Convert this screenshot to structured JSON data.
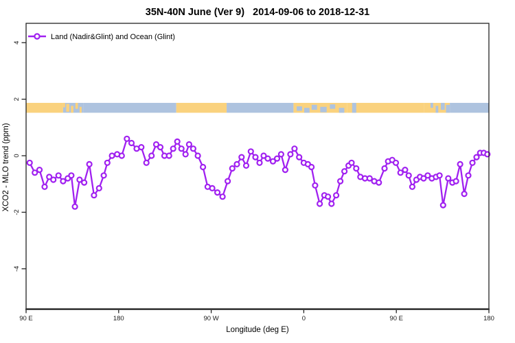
{
  "title": "35N-40N June (Ver 9)   2014-09-06 to 2018-12-31",
  "legend": {
    "label": "Land (Nadir&Glint) and Ocean (Glint)",
    "marker_color": "#A020F0"
  },
  "colors": {
    "series_purple": "#A020F0",
    "marker_fill": "#ffffff",
    "axis": "#222222",
    "land": "#FAD27E",
    "ocean": "#AEC3DF",
    "background": "#ffffff"
  },
  "axes": {
    "x": {
      "label": "Longitude (deg E)",
      "range": [
        90,
        540
      ],
      "ticks": [
        {
          "value": 90,
          "label": "90 E"
        },
        {
          "value": 180,
          "label": "180"
        },
        {
          "value": 270,
          "label": "90 W"
        },
        {
          "value": 360,
          "label": "0"
        },
        {
          "value": 450,
          "label": "90 E"
        },
        {
          "value": 540,
          "label": "180"
        }
      ]
    },
    "y": {
      "label": "XCO2 - MLO trend (ppm)",
      "ticks": [
        {
          "value": 4,
          "label": "4"
        },
        {
          "value": 2,
          "label": "2"
        },
        {
          "value": 0,
          "label": "0"
        },
        {
          "value": -2,
          "label": "-2"
        },
        {
          "value": -4,
          "label": "-4"
        }
      ]
    }
  },
  "map_strip": {
    "description": "land/ocean world strip for 35N-40N plotted between trend values 1.5 and 1.87",
    "top_value": 1.87,
    "bottom_value": 1.52,
    "land_color": "#FAD27E",
    "ocean_color": "#AEC3DF",
    "segments": [
      {
        "from": 90,
        "to": 126,
        "type": "land"
      },
      {
        "from": 126,
        "to": 146,
        "type": "mixed",
        "base": "ocean",
        "patches": [
          [
            0.0,
            0.1,
            0.0,
            0.45
          ],
          [
            0.15,
            0.3,
            0.1,
            0.9
          ],
          [
            0.38,
            0.5,
            0.3,
            1.0
          ],
          [
            0.6,
            0.72,
            0.0,
            0.6
          ],
          [
            0.8,
            0.9,
            0.4,
            1.0
          ]
        ]
      },
      {
        "from": 146,
        "to": 236,
        "type": "ocean"
      },
      {
        "from": 236,
        "to": 285,
        "type": "land"
      },
      {
        "from": 285,
        "to": 350,
        "type": "ocean"
      },
      {
        "from": 350,
        "to": 402,
        "type": "mixed",
        "base": "land",
        "patches": [
          [
            0.06,
            0.16,
            0.35,
            0.8
          ],
          [
            0.2,
            0.3,
            0.5,
            1.0
          ],
          [
            0.34,
            0.44,
            0.2,
            0.7
          ],
          [
            0.5,
            0.62,
            0.4,
            0.95
          ],
          [
            0.68,
            0.78,
            0.15,
            0.6
          ],
          [
            0.85,
            0.95,
            0.5,
            1.0
          ]
        ]
      },
      {
        "from": 402,
        "to": 477,
        "type": "land"
      },
      {
        "from": 407,
        "to": 411,
        "type": "ocean"
      },
      {
        "from": 477,
        "to": 502,
        "type": "mixed",
        "base": "land",
        "patches": [
          [
            0.25,
            0.35,
            0.0,
            0.5
          ],
          [
            0.45,
            0.55,
            0.3,
            1.0
          ],
          [
            0.65,
            0.8,
            0.0,
            0.7
          ],
          [
            0.85,
            1.0,
            0.2,
            1.0
          ]
        ]
      },
      {
        "from": 502,
        "to": 540,
        "type": "ocean"
      }
    ]
  },
  "chart_data": {
    "type": "line",
    "title": "35N-40N June (Ver 9)   2014-09-06 to 2018-12-31",
    "xlabel": "Longitude (deg E)",
    "ylabel": "XCO2 - MLO trend (ppm)",
    "xlim": [
      90,
      540
    ],
    "ylim": [
      -5.4,
      4.7
    ],
    "grid": false,
    "legend_position": "top-left",
    "series": [
      {
        "name": "Land (Nadir&Glint) and Ocean (Glint)",
        "color": "#A020F0",
        "marker": "open-circle",
        "points": [
          [
            93.5,
            -0.25
          ],
          [
            98.5,
            -0.6
          ],
          [
            103,
            -0.5
          ],
          [
            108,
            -1.1
          ],
          [
            112.5,
            -0.75
          ],
          [
            116.5,
            -0.85
          ],
          [
            121.5,
            -0.7
          ],
          [
            126,
            -0.9
          ],
          [
            130.5,
            -0.8
          ],
          [
            134,
            -0.7
          ],
          [
            137.5,
            -1.8
          ],
          [
            142,
            -0.85
          ],
          [
            146.5,
            -0.95
          ],
          [
            151.5,
            -0.3
          ],
          [
            156,
            -1.4
          ],
          [
            161,
            -1.15
          ],
          [
            165.5,
            -0.7
          ],
          [
            169,
            -0.25
          ],
          [
            173.5,
            0.0
          ],
          [
            178.5,
            0.05
          ],
          [
            183,
            0.0
          ],
          [
            188,
            0.6
          ],
          [
            192.5,
            0.45
          ],
          [
            197.5,
            0.25
          ],
          [
            202,
            0.3
          ],
          [
            207,
            -0.25
          ],
          [
            212,
            0.0
          ],
          [
            216.5,
            0.4
          ],
          [
            220.5,
            0.3
          ],
          [
            224.5,
            0.0
          ],
          [
            229,
            0.0
          ],
          [
            233,
            0.25
          ],
          [
            237,
            0.5
          ],
          [
            241,
            0.25
          ],
          [
            245,
            0.05
          ],
          [
            248.5,
            0.4
          ],
          [
            252.5,
            0.25
          ],
          [
            257,
            0.0
          ],
          [
            262,
            -0.4
          ],
          [
            266.5,
            -1.1
          ],
          [
            271,
            -1.15
          ],
          [
            276,
            -1.3
          ],
          [
            281,
            -1.45
          ],
          [
            286,
            -0.9
          ],
          [
            290.5,
            -0.45
          ],
          [
            295,
            -0.3
          ],
          [
            299.5,
            -0.05
          ],
          [
            304,
            -0.35
          ],
          [
            308.5,
            0.15
          ],
          [
            313,
            -0.05
          ],
          [
            317,
            -0.25
          ],
          [
            321,
            0.0
          ],
          [
            325,
            -0.1
          ],
          [
            330,
            -0.2
          ],
          [
            334,
            -0.1
          ],
          [
            338,
            0.05
          ],
          [
            342,
            -0.5
          ],
          [
            347,
            0.05
          ],
          [
            351,
            0.25
          ],
          [
            355.5,
            -0.05
          ],
          [
            360,
            -0.25
          ],
          [
            364,
            -0.3
          ],
          [
            367.5,
            -0.4
          ],
          [
            371,
            -1.05
          ],
          [
            375.5,
            -1.7
          ],
          [
            380,
            -1.4
          ],
          [
            383.5,
            -1.45
          ],
          [
            387,
            -1.7
          ],
          [
            391.5,
            -1.4
          ],
          [
            395.5,
            -0.9
          ],
          [
            399.5,
            -0.55
          ],
          [
            403.5,
            -0.35
          ],
          [
            406.5,
            -0.25
          ],
          [
            411,
            -0.45
          ],
          [
            415,
            -0.75
          ],
          [
            419.5,
            -0.8
          ],
          [
            424,
            -0.8
          ],
          [
            428.5,
            -0.9
          ],
          [
            433,
            -0.95
          ],
          [
            438.5,
            -0.45
          ],
          [
            442,
            -0.2
          ],
          [
            446,
            -0.15
          ],
          [
            449.5,
            -0.25
          ],
          [
            454,
            -0.6
          ],
          [
            458.5,
            -0.5
          ],
          [
            462,
            -0.7
          ],
          [
            465.5,
            -1.1
          ],
          [
            469.5,
            -0.85
          ],
          [
            473,
            -0.75
          ],
          [
            476.5,
            -0.8
          ],
          [
            480.5,
            -0.7
          ],
          [
            484.5,
            -0.8
          ],
          [
            488.5,
            -0.75
          ],
          [
            492,
            -0.7
          ],
          [
            495.5,
            -1.75
          ],
          [
            500.5,
            -0.8
          ],
          [
            504.5,
            -0.95
          ],
          [
            508,
            -0.9
          ],
          [
            512,
            -0.3
          ],
          [
            516,
            -1.35
          ],
          [
            520,
            -0.7
          ],
          [
            524,
            -0.25
          ],
          [
            528,
            -0.05
          ],
          [
            531.5,
            0.1
          ],
          [
            535,
            0.1
          ],
          [
            538.5,
            0.05
          ]
        ]
      }
    ]
  }
}
